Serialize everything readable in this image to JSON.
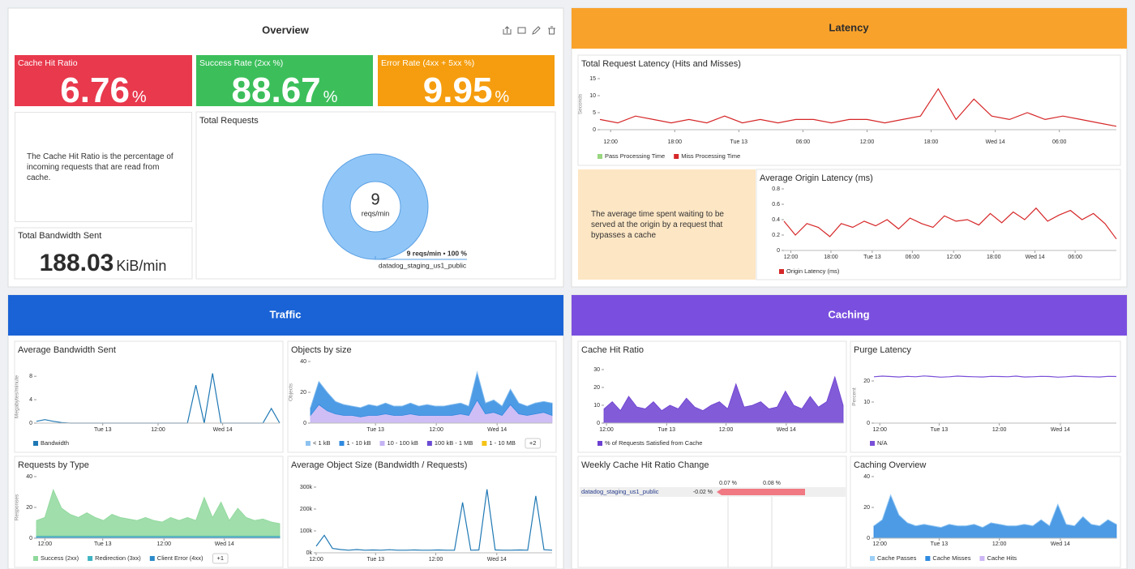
{
  "dashboard": {
    "overview": {
      "title": "Overview",
      "tiles": [
        {
          "label": "Cache Hit Ratio",
          "value": 6.76,
          "unit": "%",
          "color": "#e8394d"
        },
        {
          "label": "Success Rate (2xx %)",
          "value": 88.67,
          "unit": "%",
          "color": "#3cbf5b"
        },
        {
          "label": "Error Rate (4xx + 5xx %)",
          "value": 9.95,
          "unit": "%",
          "color": "#f59d0e"
        }
      ],
      "note": "The Cache Hit Ratio is the percentage of incoming requests that are read from cache.",
      "bandwidth": {
        "label": "Total Bandwidth Sent",
        "value": 188.03,
        "unit": "KiB/min"
      }
    },
    "latency": {
      "title": "Latency",
      "note": "The average time spent waiting to be served at the origin by a request that bypasses a cache"
    },
    "traffic": {
      "title": "Traffic"
    },
    "caching": {
      "title": "Caching"
    }
  },
  "chart_data": [
    {
      "type": "donut",
      "title": "Total Requests",
      "center_value": 9,
      "center_unit": "reqs/min",
      "series": [
        {
          "name": "datadog_staging_us1_public",
          "value": 100,
          "value_label": "9 reqs/min • 100 %",
          "color": "#90c6f7"
        }
      ]
    },
    {
      "type": "line",
      "title": "Total Request Latency (Hits and Misses)",
      "ylabel": "Seconds",
      "xlim": [
        0,
        29
      ],
      "ylim": [
        0,
        15
      ],
      "yticks": [
        0,
        5,
        10,
        15
      ],
      "xticks": [
        {
          "value": 0.6,
          "label": "12:00"
        },
        {
          "value": 4.2,
          "label": "18:00"
        },
        {
          "value": 7.8,
          "label": "Tue 13"
        },
        {
          "value": 11.4,
          "label": "06:00"
        },
        {
          "value": 15.0,
          "label": "12:00"
        },
        {
          "value": 18.6,
          "label": "18:00"
        },
        {
          "value": 22.2,
          "label": "Wed 14"
        },
        {
          "value": 25.8,
          "label": "06:00"
        }
      ],
      "series": [
        {
          "name": "Pass Processing Time",
          "color": "#98d67f",
          "values": [
            null,
            null,
            null,
            null,
            null,
            null,
            null,
            null,
            null,
            null,
            null,
            null,
            null,
            null,
            null,
            null,
            null,
            null,
            null,
            null,
            null,
            null,
            null,
            null,
            null,
            null,
            null,
            null,
            null,
            null
          ]
        },
        {
          "name": "Miss Processing Time",
          "color": "#d62728",
          "values": [
            3,
            2,
            4,
            3,
            2,
            3,
            2,
            4,
            2,
            3,
            2,
            3,
            3,
            2,
            3,
            3,
            2,
            3,
            4,
            12,
            3,
            9,
            4,
            3,
            5,
            3,
            4,
            3,
            2,
            1
          ]
        }
      ]
    },
    {
      "type": "line",
      "title": "Average Origin Latency (ms)",
      "xlim": [
        0,
        29
      ],
      "ylim": [
        0,
        0.8
      ],
      "yticks": [
        0,
        0.2,
        0.4,
        0.6,
        0.8
      ],
      "xticks": [
        {
          "value": 0.6,
          "label": "12:00"
        },
        {
          "value": 4.1,
          "label": "18:00"
        },
        {
          "value": 7.7,
          "label": "Tue 13"
        },
        {
          "value": 11.2,
          "label": "06:00"
        },
        {
          "value": 14.8,
          "label": "12:00"
        },
        {
          "value": 18.3,
          "label": "18:00"
        },
        {
          "value": 21.9,
          "label": "Wed 14"
        },
        {
          "value": 25.4,
          "label": "06:00"
        }
      ],
      "series": [
        {
          "name": "Origin Latency (ms)",
          "color": "#d62728",
          "values": [
            0.38,
            0.2,
            0.35,
            0.3,
            0.18,
            0.35,
            0.3,
            0.38,
            0.32,
            0.4,
            0.28,
            0.42,
            0.35,
            0.3,
            0.45,
            0.38,
            0.4,
            0.33,
            0.48,
            0.36,
            0.5,
            0.4,
            0.55,
            0.38,
            0.46,
            0.52,
            0.4,
            0.48,
            0.35,
            0.15
          ]
        }
      ]
    },
    {
      "type": "line",
      "title": "Average Bandwidth Sent",
      "ylabel": "Megabytes/minute",
      "xlim": [
        0,
        29
      ],
      "ylim": [
        0,
        9
      ],
      "yticks": [
        0,
        4,
        8
      ],
      "xticks": [
        {
          "value": 7.9,
          "label": "Tue 13"
        },
        {
          "value": 14.5,
          "label": "12:00"
        },
        {
          "value": 22.2,
          "label": "Wed 14"
        }
      ],
      "series": [
        {
          "name": "Bandwidth",
          "color": "#1f78b4",
          "values": [
            0.3,
            0.6,
            0.3,
            0.1,
            0,
            0,
            0,
            0,
            0,
            0,
            0,
            0,
            0,
            0,
            0,
            0,
            0,
            0,
            0,
            6.5,
            0,
            8.5,
            0,
            0,
            0,
            0,
            0,
            0,
            2.5,
            0
          ]
        }
      ]
    },
    {
      "type": "area",
      "title": "Objects by size",
      "ylabel": "Objects",
      "xlim": [
        0,
        29
      ],
      "ylim": [
        0,
        40
      ],
      "yticks": [
        0,
        20,
        40
      ],
      "legend_more": "+2",
      "xticks": [
        {
          "value": 7.8,
          "label": "Tue 13"
        },
        {
          "value": 15.1,
          "label": "12:00"
        },
        {
          "value": 22.4,
          "label": "Wed 14"
        }
      ],
      "series": [
        {
          "name": "< 1 kB",
          "color": "#8ec3f0",
          "values": [
            0,
            0,
            0,
            0,
            0,
            0,
            0,
            0,
            0,
            0,
            0,
            0,
            0,
            0,
            0,
            0,
            0,
            0,
            0,
            0,
            0,
            0,
            0,
            0,
            0,
            0,
            0,
            0,
            0,
            0
          ]
        },
        {
          "name": "1 - 10 kB",
          "color": "#2f8ae0",
          "values": [
            5,
            15,
            12,
            8,
            7,
            6,
            6,
            7,
            6,
            7,
            6,
            6,
            7,
            6,
            7,
            6,
            6,
            7,
            7,
            6,
            18,
            7,
            8,
            6,
            10,
            7,
            6,
            7,
            7,
            8
          ]
        },
        {
          "name": "10 - 100 kB",
          "color": "#c5b3f3",
          "values": [
            5,
            12,
            8,
            6,
            5,
            5,
            4,
            5,
            5,
            6,
            5,
            5,
            6,
            5,
            5,
            5,
            5,
            5,
            6,
            5,
            15,
            6,
            7,
            5,
            12,
            6,
            5,
            6,
            7,
            5
          ]
        },
        {
          "name": "100 kB - 1 MB",
          "color": "#6a4bd3",
          "values": [
            0,
            0,
            0,
            0,
            0,
            0,
            0,
            0,
            0,
            0,
            0,
            0,
            0,
            0,
            0,
            0,
            0,
            0,
            0,
            0,
            0,
            0,
            0,
            0,
            0,
            0,
            0,
            0,
            0,
            0
          ]
        },
        {
          "name": "1 - 10 MB",
          "color": "#f5c316",
          "values": [
            0,
            0,
            0,
            0,
            0,
            0,
            0,
            0,
            0,
            0,
            0,
            0,
            0,
            0,
            0,
            0,
            0,
            0,
            0,
            0,
            0,
            0,
            0,
            0,
            0,
            0,
            0,
            0,
            0,
            0
          ]
        }
      ]
    },
    {
      "type": "area",
      "title": "Requests by Type",
      "ylabel": "Responses",
      "xlim": [
        0,
        29
      ],
      "ylim": [
        0,
        40
      ],
      "yticks": [
        0,
        20,
        40
      ],
      "legend_more": "+1",
      "xticks": [
        {
          "value": 1.0,
          "label": "12:00"
        },
        {
          "value": 7.9,
          "label": "Tue 13"
        },
        {
          "value": 15.2,
          "label": "12:00"
        },
        {
          "value": 22.4,
          "label": "Wed 14"
        }
      ],
      "series": [
        {
          "name": "Success (2xx)",
          "color": "#8fd89c",
          "values": [
            10,
            12,
            30,
            18,
            14,
            12,
            15,
            12,
            10,
            14,
            12,
            11,
            10,
            12,
            10,
            9,
            12,
            10,
            12,
            10,
            25,
            12,
            22,
            10,
            18,
            12,
            10,
            11,
            9,
            8
          ]
        },
        {
          "name": "Redirection (3xx)",
          "color": "#3fb3c2",
          "values": [
            0.5,
            0.5,
            0.5,
            0.5,
            0.5,
            0.5,
            0.5,
            0.5,
            0.5,
            0.5,
            0.5,
            0.5,
            0.5,
            0.5,
            0.5,
            0.5,
            0.5,
            0.5,
            0.5,
            0.5,
            0.5,
            0.5,
            0.5,
            0.5,
            0.5,
            0.5,
            0.5,
            0.5,
            0.5,
            0.5
          ]
        },
        {
          "name": "Client Error (4xx)",
          "color": "#2b8ac9",
          "values": [
            1,
            1,
            1,
            1,
            1,
            1,
            1,
            1,
            1,
            1,
            1,
            1,
            1,
            1,
            1,
            1,
            1,
            1,
            1,
            1,
            1,
            1,
            1,
            1,
            1,
            1,
            1,
            1,
            1,
            1
          ]
        }
      ]
    },
    {
      "type": "line",
      "title": "Average Object Size (Bandwidth / Requests)",
      "xlim": [
        0,
        29
      ],
      "ylim": [
        0,
        300000
      ],
      "yticks": [
        {
          "value": 0,
          "label": "0k"
        },
        {
          "value": 100000,
          "label": "100k"
        },
        {
          "value": 200000,
          "label": "200k"
        },
        {
          "value": 300000,
          "label": "300k"
        }
      ],
      "xticks": [
        {
          "value": 0,
          "label": "12:00"
        },
        {
          "value": 7.3,
          "label": "Tue 13"
        },
        {
          "value": 14.7,
          "label": "12:00"
        },
        {
          "value": 22.2,
          "label": "Wed 14"
        }
      ],
      "series": [
        {
          "name": null,
          "color": "#1f78b4",
          "values": [
            30000,
            80000,
            20000,
            15000,
            12000,
            15000,
            12000,
            13000,
            12000,
            14000,
            12000,
            12000,
            13000,
            12000,
            12000,
            13000,
            12000,
            12000,
            230000,
            12000,
            13000,
            290000,
            13000,
            12000,
            12000,
            13000,
            12000,
            260000,
            14000,
            12000
          ]
        }
      ]
    },
    {
      "type": "area",
      "title": "Cache Hit Ratio",
      "xlim": [
        0,
        29
      ],
      "ylim": [
        0,
        30
      ],
      "yticks": [
        0,
        10,
        20,
        30
      ],
      "xticks": [
        {
          "value": 0.3,
          "label": "12:00"
        },
        {
          "value": 7.6,
          "label": "Tue 13"
        },
        {
          "value": 14.8,
          "label": "12:00"
        },
        {
          "value": 22.1,
          "label": "Wed 14"
        }
      ],
      "series": [
        {
          "name": "% of Requests Satisfied from Cache",
          "color": "#6c3fd1",
          "values": [
            8,
            12,
            7,
            15,
            9,
            8,
            12,
            7,
            10,
            8,
            14,
            9,
            7,
            10,
            12,
            8,
            22,
            9,
            10,
            12,
            8,
            9,
            18,
            10,
            8,
            15,
            9,
            12,
            26,
            10
          ]
        }
      ]
    },
    {
      "type": "line",
      "title": "Purge Latency",
      "ylabel": "Percent",
      "xlim": [
        0,
        29
      ],
      "ylim": [
        0,
        25
      ],
      "yticks": [
        0,
        10,
        20
      ],
      "xticks": [
        {
          "value": 0.7,
          "label": "12:00"
        },
        {
          "value": 7.8,
          "label": "Tue 13"
        },
        {
          "value": 15.0,
          "label": "12:00"
        },
        {
          "value": 22.3,
          "label": "Wed 14"
        }
      ],
      "series": [
        {
          "name": "N/A",
          "color": "#7a4fd8",
          "values": [
            22,
            22.3,
            22.1,
            21.9,
            22.2,
            22,
            22.4,
            22.1,
            21.8,
            22,
            22.3,
            22.1,
            22,
            21.9,
            22.2,
            22.1,
            22,
            22.3,
            21.9,
            22,
            22.2,
            22.1,
            21.8,
            22,
            22.3,
            22.1,
            22,
            21.9,
            22.2,
            22.1
          ]
        }
      ]
    },
    {
      "type": "change",
      "title": "Weekly Cache Hit Ratio Change",
      "categories": [
        "datadog_staging_us1_public"
      ],
      "values": [
        -0.02
      ],
      "value_labels": [
        "-0.02 %"
      ],
      "references": [
        {
          "value": 0.07,
          "label": "0.07 %"
        },
        {
          "value": 0.08,
          "label": "0.08 %"
        }
      ],
      "color": "#f0525f"
    },
    {
      "type": "area",
      "title": "Caching Overview",
      "xlim": [
        0,
        29
      ],
      "ylim": [
        0,
        40
      ],
      "yticks": [
        0,
        20,
        40
      ],
      "xticks": [
        {
          "value": 0.7,
          "label": "12:00"
        },
        {
          "value": 7.8,
          "label": "Tue 13"
        },
        {
          "value": 15.0,
          "label": "12:00"
        },
        {
          "value": 22.3,
          "label": "Wed 14"
        }
      ],
      "series": [
        {
          "name": "Cache Passes",
          "color": "#9dcff5",
          "values": [
            0,
            0,
            0,
            0,
            0,
            0,
            0,
            0,
            0,
            0,
            0,
            0,
            0,
            0,
            0,
            0,
            0,
            0,
            0,
            0,
            0,
            0,
            0,
            0,
            0,
            0,
            0,
            0,
            0,
            0
          ]
        },
        {
          "name": "Cache Misses",
          "color": "#2f8ae0",
          "values": [
            8,
            12,
            28,
            15,
            10,
            8,
            9,
            8,
            7,
            9,
            8,
            8,
            9,
            7,
            10,
            9,
            8,
            8,
            9,
            8,
            12,
            8,
            22,
            9,
            8,
            14,
            9,
            8,
            12,
            9
          ]
        },
        {
          "name": "Cache Hits",
          "color": "#cdb6f5",
          "values": [
            0,
            0,
            0,
            0,
            0,
            0,
            0,
            0,
            0,
            0,
            0,
            0,
            0,
            0,
            0,
            0,
            0,
            0,
            0,
            0,
            0,
            0,
            0,
            0,
            0,
            0,
            0,
            0,
            0,
            0
          ]
        }
      ]
    }
  ]
}
